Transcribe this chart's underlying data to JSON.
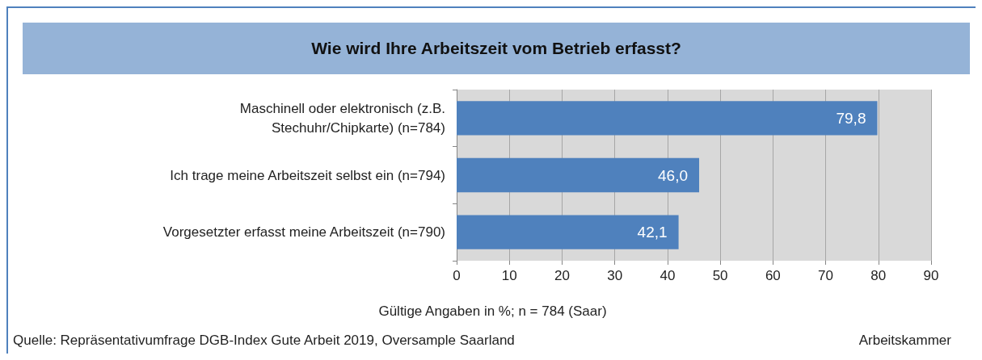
{
  "chart_data": {
    "type": "bar",
    "orientation": "horizontal",
    "title": "Wie wird Ihre Arbeitszeit vom Betrieb erfasst?",
    "xlabel": "Gültige Angaben in %; n = 784 (Saar)",
    "categories": [
      "Maschinell oder elektronisch (z.B.\nStechuhr/Chipkarte) (n=784)",
      "Ich trage meine Arbeitszeit selbst ein (n=794)",
      "Vorgesetzter erfasst meine Arbeitszeit (n=790)"
    ],
    "values": [
      79.8,
      46.0,
      42.1
    ],
    "value_labels": [
      "79,8",
      "46,0",
      "42,1"
    ],
    "color": "#4f81bd",
    "xlim": [
      0,
      90
    ],
    "xticks": [
      0,
      10,
      20,
      30,
      40,
      50,
      60,
      70,
      80,
      90
    ],
    "grid": "x",
    "annotations": [
      "Quelle: Repräsentativumfrage DGB-Index Gute Arbeit 2019, Oversample Saarland",
      "Arbeitskammer"
    ]
  }
}
